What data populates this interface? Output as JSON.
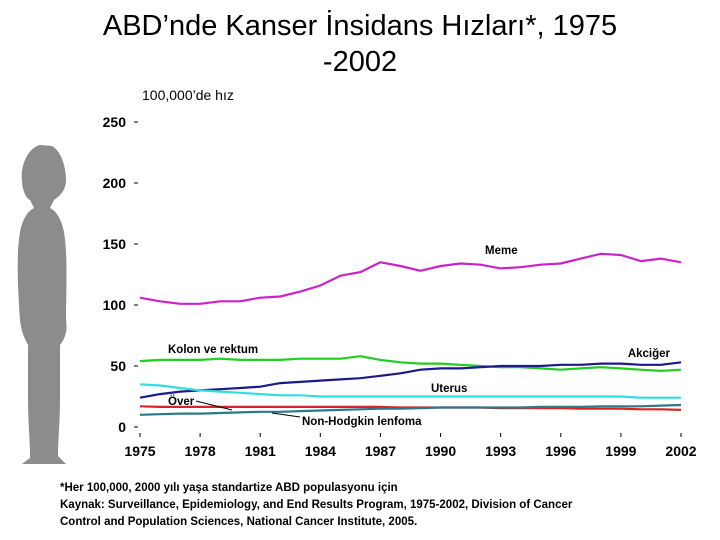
{
  "page": {
    "title_line1": "ABD’nde Kanser İnsidans Hızları*, 1975",
    "title_line2": "-2002",
    "footnote_line1": "*Her 100,000, 2000 yılı yaşa standartize ABD populasyonu için",
    "footnote_line2": "Kaynak: Surveillance, Epidemiology, and End Results Program, 1975-2002, Division of Cancer",
    "footnote_line3": "Control and Population Sciences, National Cancer Institute, 2005.",
    "silhouette_icon": "woman-silhouette-icon",
    "silhouette_color": "#8c8c8c"
  },
  "chart_data": {
    "type": "line",
    "title": "ABD’nde Kanser İnsidans Hızları*, 1975 -2002",
    "ylabel": "100,000’de hız",
    "xlabel": "",
    "ylim": [
      0,
      250
    ],
    "xlim": [
      1975,
      2002
    ],
    "yticks": [
      0,
      50,
      100,
      150,
      200,
      250
    ],
    "xticks": [
      1975,
      1978,
      1981,
      1984,
      1987,
      1990,
      1993,
      1996,
      1999,
      2002
    ],
    "grid": false,
    "x": [
      1975,
      1976,
      1977,
      1978,
      1979,
      1980,
      1981,
      1982,
      1983,
      1984,
      1985,
      1986,
      1987,
      1988,
      1989,
      1990,
      1991,
      1992,
      1993,
      1994,
      1995,
      1996,
      1997,
      1998,
      1999,
      2000,
      2001,
      2002
    ],
    "series": [
      {
        "name": "Meme",
        "color": "#cc22cc",
        "values": [
          106,
          103,
          101,
          101,
          103,
          103,
          106,
          107,
          111,
          116,
          124,
          127,
          135,
          132,
          128,
          132,
          134,
          133,
          130,
          131,
          133,
          134,
          138,
          142,
          141,
          136,
          138,
          135
        ]
      },
      {
        "name": "Kolon ve rektum",
        "color": "#22cc22",
        "values": [
          54,
          55,
          55,
          55,
          56,
          55,
          55,
          55,
          56,
          56,
          56,
          58,
          55,
          53,
          52,
          52,
          51,
          50,
          49,
          49,
          48,
          47,
          48,
          49,
          48,
          47,
          46,
          47
        ]
      },
      {
        "name": "Akciğer",
        "color": "#1a1a8c",
        "values": [
          24,
          27,
          29,
          30,
          31,
          32,
          33,
          36,
          37,
          38,
          39,
          40,
          42,
          44,
          47,
          48,
          48,
          49,
          50,
          50,
          50,
          51,
          51,
          52,
          52,
          51,
          51,
          53
        ]
      },
      {
        "name": "Uterus",
        "color": "#33dddd",
        "values": [
          35,
          34,
          32,
          30,
          29,
          28,
          27,
          26,
          26,
          25,
          25,
          25,
          25,
          25,
          25,
          25,
          25,
          25,
          25,
          25,
          25,
          25,
          25,
          25,
          25,
          24,
          24,
          24
        ]
      },
      {
        "name": "Över",
        "color": "#dd2222",
        "values": [
          17,
          16.5,
          16.5,
          16.5,
          16.5,
          16.5,
          16.5,
          16.5,
          16.5,
          16.5,
          16.5,
          16.5,
          16.5,
          16,
          16,
          16,
          16,
          16,
          15.5,
          15.5,
          15.5,
          15.5,
          15,
          15,
          15,
          14.5,
          14.5,
          14
        ]
      },
      {
        "name": "Non-Hodgkin lenfoma",
        "color": "#2a7a8c",
        "values": [
          10,
          10.5,
          11,
          11,
          11.5,
          12,
          12.5,
          12.5,
          13,
          13.5,
          14,
          14.5,
          15,
          15,
          15.5,
          16,
          16,
          16,
          16,
          16,
          16.5,
          16.5,
          16.5,
          17,
          17,
          17,
          17.5,
          18
        ]
      }
    ]
  }
}
